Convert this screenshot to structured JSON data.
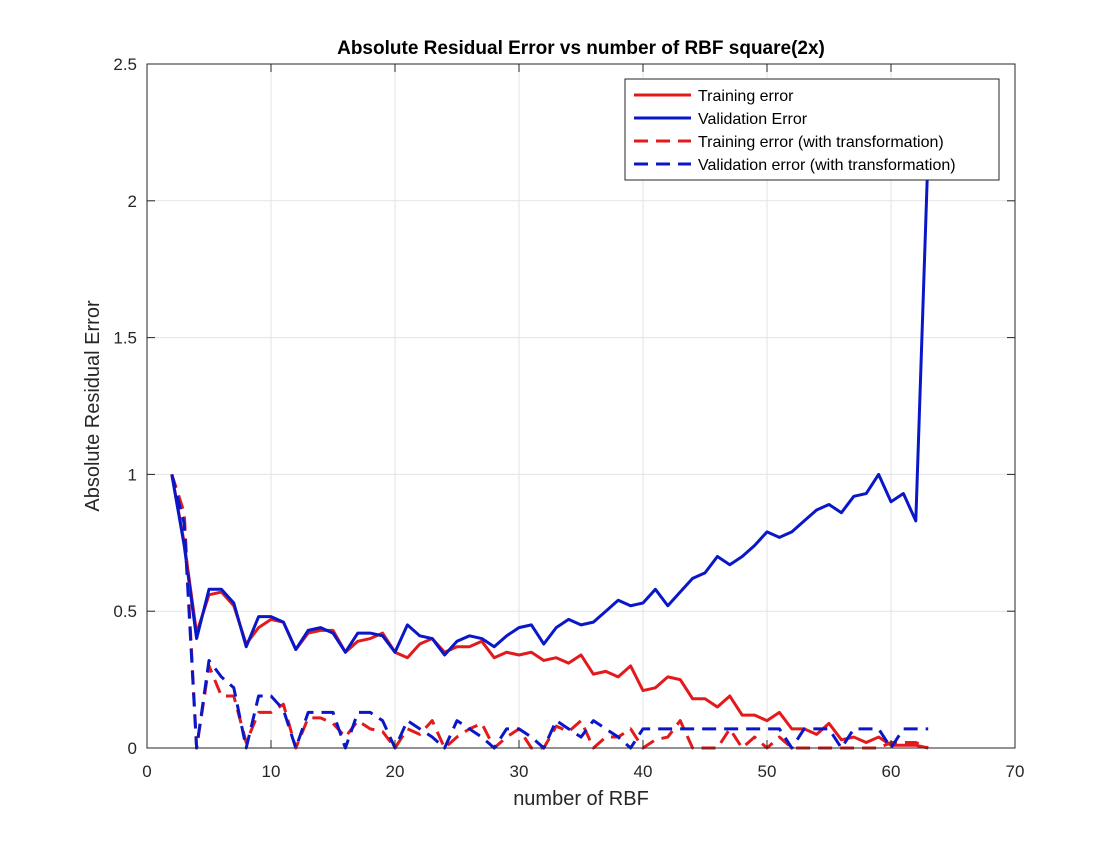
{
  "chart_data": {
    "type": "line",
    "title": "Absolute Residual Error vs number of RBF square(2x)",
    "xlabel": "number of RBF",
    "ylabel": "Absolute Residual Error",
    "xlim": [
      0,
      70
    ],
    "ylim": [
      0,
      2.5
    ],
    "xticks": [
      0,
      10,
      20,
      30,
      40,
      50,
      60,
      70
    ],
    "yticks": [
      0,
      0.5,
      1,
      1.5,
      2,
      2.5
    ],
    "xtick_labels": [
      "0",
      "10",
      "20",
      "30",
      "40",
      "50",
      "60",
      "70"
    ],
    "ytick_labels": [
      "0",
      "0.5",
      "1",
      "1.5",
      "2",
      "2.5"
    ],
    "grid": true,
    "legend_position": "top-right",
    "x": [
      2,
      3,
      4,
      5,
      6,
      7,
      8,
      9,
      10,
      11,
      12,
      13,
      14,
      15,
      16,
      17,
      18,
      19,
      20,
      21,
      22,
      23,
      24,
      25,
      26,
      27,
      28,
      29,
      30,
      31,
      32,
      33,
      34,
      35,
      36,
      37,
      38,
      39,
      40,
      41,
      42,
      43,
      44,
      45,
      46,
      47,
      48,
      49,
      50,
      51,
      52,
      53,
      54,
      55,
      56,
      57,
      58,
      59,
      60,
      61,
      62,
      63
    ],
    "series": [
      {
        "name": "Training error",
        "color": "#e31a1c",
        "dash": "solid",
        "values": [
          1.0,
          0.75,
          0.42,
          0.56,
          0.57,
          0.52,
          0.38,
          0.44,
          0.47,
          0.46,
          0.36,
          0.42,
          0.43,
          0.43,
          0.35,
          0.39,
          0.4,
          0.42,
          0.35,
          0.33,
          0.38,
          0.4,
          0.35,
          0.37,
          0.37,
          0.39,
          0.33,
          0.35,
          0.34,
          0.35,
          0.32,
          0.33,
          0.31,
          0.34,
          0.27,
          0.28,
          0.26,
          0.3,
          0.21,
          0.22,
          0.26,
          0.25,
          0.18,
          0.18,
          0.15,
          0.19,
          0.12,
          0.12,
          0.1,
          0.13,
          0.07,
          0.07,
          0.05,
          0.09,
          0.03,
          0.04,
          0.02,
          0.04,
          0.01,
          0.01,
          0.01,
          0.0
        ]
      },
      {
        "name": "Validation Error",
        "color": "#0a17c9",
        "dash": "solid",
        "values": [
          1.0,
          0.74,
          0.4,
          0.58,
          0.58,
          0.53,
          0.37,
          0.48,
          0.48,
          0.46,
          0.36,
          0.43,
          0.44,
          0.42,
          0.35,
          0.42,
          0.42,
          0.41,
          0.35,
          0.45,
          0.41,
          0.4,
          0.34,
          0.39,
          0.41,
          0.4,
          0.37,
          0.41,
          0.44,
          0.45,
          0.38,
          0.44,
          0.47,
          0.45,
          0.46,
          0.5,
          0.54,
          0.52,
          0.53,
          0.58,
          0.52,
          0.57,
          0.62,
          0.64,
          0.7,
          0.67,
          0.7,
          0.74,
          0.79,
          0.77,
          0.79,
          0.83,
          0.87,
          0.89,
          0.86,
          0.92,
          0.93,
          1.0,
          0.9,
          0.93,
          0.83,
          2.19
        ]
      },
      {
        "name": "Training error (with transformation)",
        "color": "#e31a1c",
        "dash": "dashed",
        "values": [
          1.0,
          0.86,
          0.0,
          0.3,
          0.19,
          0.19,
          0.02,
          0.13,
          0.13,
          0.16,
          0.0,
          0.11,
          0.11,
          0.09,
          0.04,
          0.1,
          0.07,
          0.06,
          0.0,
          0.07,
          0.05,
          0.1,
          0.0,
          0.04,
          0.07,
          0.09,
          0.0,
          0.04,
          0.07,
          0.0,
          0.0,
          0.08,
          0.06,
          0.1,
          0.0,
          0.04,
          0.04,
          0.07,
          0.0,
          0.03,
          0.04,
          0.1,
          0.0,
          0.0,
          0.0,
          0.07,
          0.0,
          0.04,
          0.0,
          0.04,
          0.0,
          0.0,
          0.0,
          0.0,
          0.0,
          0.0,
          0.0,
          0.0,
          0.02,
          0.02,
          0.02,
          0.0
        ]
      },
      {
        "name": "Validation error (with transformation)",
        "color": "#0a17c9",
        "dash": "dashed",
        "values": [
          1.0,
          0.82,
          0.0,
          0.32,
          0.26,
          0.22,
          0.0,
          0.19,
          0.19,
          0.14,
          0.0,
          0.13,
          0.13,
          0.13,
          0.0,
          0.13,
          0.13,
          0.1,
          0.0,
          0.1,
          0.07,
          0.04,
          0.0,
          0.1,
          0.07,
          0.04,
          0.0,
          0.07,
          0.07,
          0.04,
          0.0,
          0.1,
          0.07,
          0.04,
          0.1,
          0.07,
          0.04,
          0.0,
          0.07,
          0.07,
          0.07,
          0.07,
          0.07,
          0.07,
          0.07,
          0.07,
          0.07,
          0.07,
          0.07,
          0.07,
          0.0,
          0.07,
          0.07,
          0.07,
          0.0,
          0.07,
          0.07,
          0.07,
          0.0,
          0.07,
          0.07,
          0.07
        ]
      }
    ]
  }
}
